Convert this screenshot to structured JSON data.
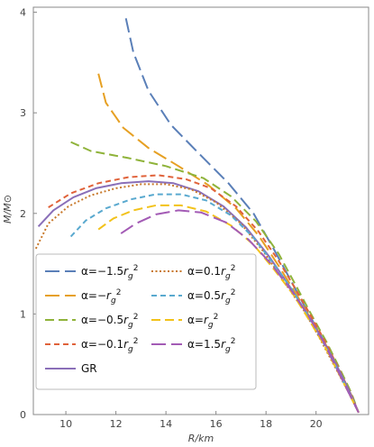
{
  "chart_data": {
    "type": "line",
    "title": "",
    "xlabel": "R/km",
    "ylabel": "M/M⊙",
    "xlim": [
      8.7,
      22.1
    ],
    "ylim": [
      0,
      4.05
    ],
    "xticks": [
      10,
      12,
      14,
      16,
      18,
      20
    ],
    "yticks": [
      0,
      1,
      2,
      3,
      4
    ],
    "grid": false,
    "legend_placement": "bottom-left",
    "series": [
      {
        "name": "α=−1.5r_g²",
        "legend_label": "α=−1.5rg²",
        "color": "#5a7fb8",
        "dash": "long-dash",
        "x": [
          12.4,
          12.7,
          13.3,
          14.2,
          15.3,
          16.5,
          17.5,
          18.3,
          19.0,
          19.6,
          20.2,
          20.8,
          21.3,
          21.7
        ],
        "y": [
          3.94,
          3.6,
          3.22,
          2.88,
          2.6,
          2.3,
          2.0,
          1.65,
          1.33,
          1.05,
          0.78,
          0.5,
          0.25,
          0.02
        ]
      },
      {
        "name": "α=−r_g²",
        "legend_label": "α=−rg²",
        "color": "#e6a023",
        "dash": "long-dash",
        "x": [
          11.3,
          11.6,
          12.3,
          13.3,
          14.5,
          15.7,
          16.8,
          17.7,
          18.5,
          19.2,
          19.8,
          20.4,
          20.9,
          21.4,
          21.7
        ],
        "y": [
          3.39,
          3.1,
          2.85,
          2.65,
          2.47,
          2.28,
          2.05,
          1.78,
          1.48,
          1.2,
          0.95,
          0.69,
          0.45,
          0.2,
          0.02
        ]
      },
      {
        "name": "α=−0.5r_g²",
        "legend_label": "α=−0.5rg²",
        "color": "#8fb33a",
        "dash": "dash",
        "x": [
          10.2,
          11.0,
          12.5,
          14.0,
          15.5,
          16.6,
          17.6,
          18.5,
          19.2,
          19.8,
          20.4,
          20.9,
          21.4,
          21.7
        ],
        "y": [
          2.71,
          2.62,
          2.55,
          2.47,
          2.35,
          2.17,
          1.92,
          1.6,
          1.28,
          1.0,
          0.73,
          0.48,
          0.22,
          0.02
        ]
      },
      {
        "name": "α=−0.1r_g²",
        "legend_label": "α=−0.1rg²",
        "color": "#e0623a",
        "dash": "short-dash",
        "x": [
          9.3,
          10.2,
          11.3,
          12.5,
          13.7,
          14.8,
          15.8,
          16.8,
          17.7,
          18.5,
          19.2,
          19.8,
          20.4,
          20.9,
          21.4,
          21.7
        ],
        "y": [
          2.06,
          2.2,
          2.3,
          2.36,
          2.38,
          2.34,
          2.25,
          2.07,
          1.82,
          1.53,
          1.24,
          0.98,
          0.71,
          0.46,
          0.2,
          0.02
        ]
      },
      {
        "name": "GR",
        "legend_label": "GR",
        "color": "#8a6fb8",
        "dash": "solid",
        "x": [
          8.9,
          9.5,
          10.3,
          11.2,
          12.2,
          13.3,
          14.3,
          15.3,
          16.3,
          17.2,
          18.1,
          18.9,
          19.6,
          20.2,
          20.8,
          21.3,
          21.7
        ],
        "y": [
          1.87,
          2.03,
          2.16,
          2.25,
          2.3,
          2.32,
          2.3,
          2.22,
          2.07,
          1.86,
          1.58,
          1.29,
          1.02,
          0.77,
          0.5,
          0.25,
          0.02
        ]
      },
      {
        "name": "α=0.1r_g²",
        "legend_label": "α=0.1rg²",
        "color": "#c8792b",
        "dash": "dot",
        "x": [
          8.8,
          9.3,
          10.1,
          11.0,
          12.0,
          13.0,
          14.0,
          15.0,
          16.0,
          17.0,
          17.9,
          18.7,
          19.5,
          20.1,
          20.7,
          21.3,
          21.7
        ],
        "y": [
          1.65,
          1.9,
          2.07,
          2.18,
          2.25,
          2.29,
          2.29,
          2.24,
          2.11,
          1.9,
          1.62,
          1.33,
          1.04,
          0.78,
          0.5,
          0.22,
          0.02
        ]
      },
      {
        "name": "α=0.5r_g²",
        "legend_label": "α=0.5rg²",
        "color": "#59a9cf",
        "dash": "short-dash",
        "x": [
          10.2,
          10.8,
          11.6,
          12.6,
          13.6,
          14.6,
          15.6,
          16.6,
          17.5,
          18.3,
          19.1,
          19.7,
          20.3,
          20.8,
          21.3,
          21.7
        ],
        "y": [
          1.77,
          1.93,
          2.05,
          2.14,
          2.19,
          2.19,
          2.13,
          1.98,
          1.76,
          1.5,
          1.22,
          0.97,
          0.71,
          0.47,
          0.22,
          0.02
        ]
      },
      {
        "name": "α=r_g²",
        "legend_label": "α=rg²",
        "color": "#f2c21a",
        "dash": "dash",
        "x": [
          11.3,
          11.9,
          12.7,
          13.6,
          14.6,
          15.6,
          16.6,
          17.5,
          18.3,
          19.1,
          19.7,
          20.3,
          20.8,
          21.3,
          21.7
        ],
        "y": [
          1.84,
          1.95,
          2.03,
          2.08,
          2.08,
          2.02,
          1.88,
          1.69,
          1.45,
          1.19,
          0.95,
          0.7,
          0.46,
          0.22,
          0.02
        ]
      },
      {
        "name": "α=1.5r_g²",
        "legend_label": "α=1.5rg²",
        "color": "#a35bb5",
        "dash": "long-dash",
        "x": [
          12.2,
          12.8,
          13.6,
          14.5,
          15.4,
          16.4,
          17.3,
          18.2,
          19.0,
          19.7,
          20.3,
          20.8,
          21.3,
          21.7
        ],
        "y": [
          1.8,
          1.9,
          1.99,
          2.03,
          2.01,
          1.91,
          1.74,
          1.5,
          1.24,
          0.98,
          0.72,
          0.47,
          0.22,
          0.02
        ]
      }
    ]
  }
}
